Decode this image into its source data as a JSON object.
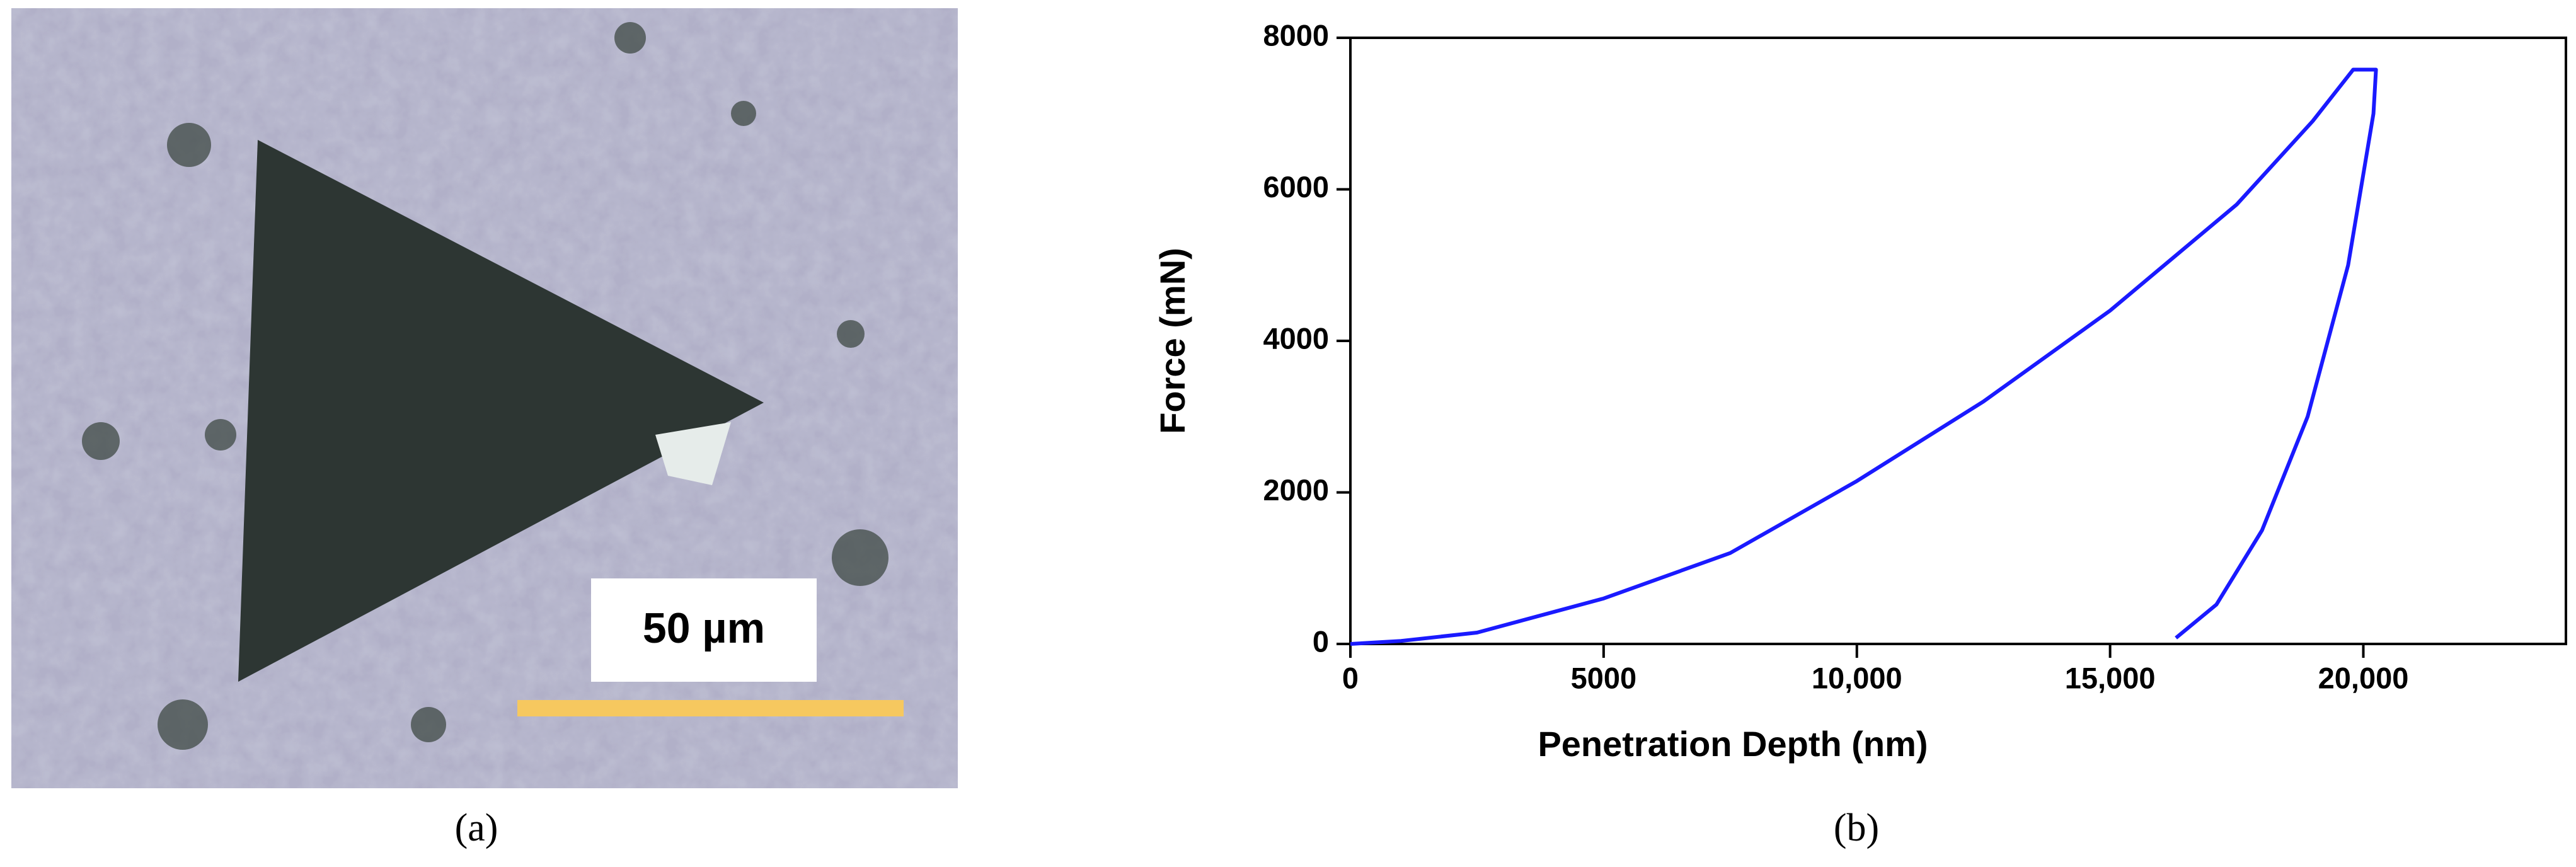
{
  "panel_a": {
    "scale_bar_label": "50 µm",
    "caption": "(a)"
  },
  "chart_data": {
    "type": "line",
    "caption": "(b)",
    "xlabel": "Penetration Depth (nm)",
    "ylabel": "Force (mN)",
    "x": [
      0,
      1000,
      2500,
      5000,
      7500,
      10000,
      12500,
      15000,
      17500,
      19000,
      19800,
      20250,
      20200,
      19700,
      18900,
      18000,
      17100,
      16300
    ],
    "series": [
      {
        "color": "#1a1aff",
        "values": [
          0,
          40,
          150,
          600,
          1200,
          2150,
          3200,
          4400,
          5800,
          6900,
          7580,
          7580,
          7000,
          5000,
          3000,
          1500,
          520,
          80
        ]
      }
    ],
    "xlim": [
      0,
      24000
    ],
    "ylim": [
      0,
      8000
    ],
    "xticks": [
      0,
      5000,
      {
        "value": 10000,
        "label": "10,000"
      },
      {
        "value": 15000,
        "label": "15,000"
      },
      {
        "value": 20000,
        "label": "20,000"
      }
    ],
    "yticks": [
      0,
      2000,
      4000,
      6000,
      8000
    ]
  }
}
